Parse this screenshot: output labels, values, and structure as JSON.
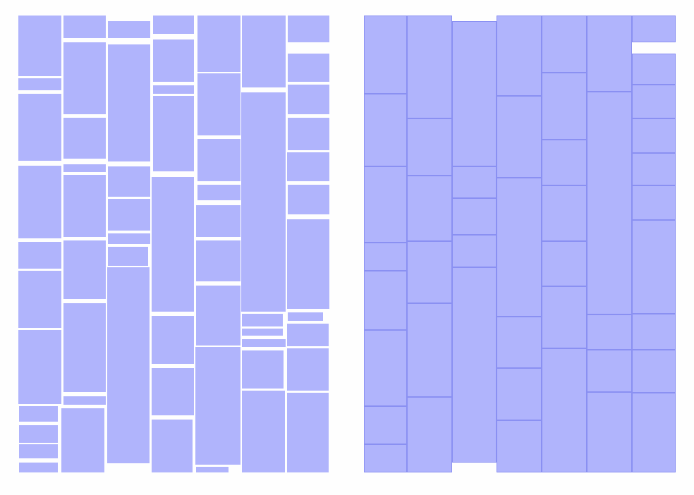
{
  "diagram": {
    "fill_color": "#b0b4fc",
    "stroke_color": "#8a90f2",
    "background_color": "#fefefe"
  }
}
